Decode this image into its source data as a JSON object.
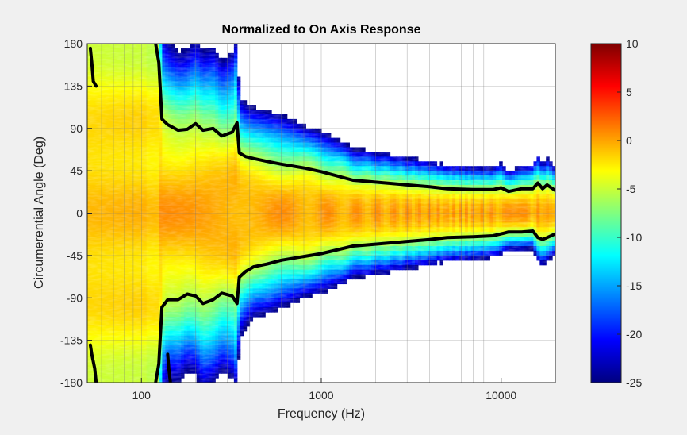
{
  "chart_data": {
    "type": "heatmap",
    "title": "Normalized to On Axis Response",
    "xlabel": "Frequency (Hz)",
    "ylabel": "Circumerential Angle (Deg)",
    "x_scale": "log",
    "xlim": [
      50,
      20000
    ],
    "ylim": [
      -180,
      180
    ],
    "x_ticks": [
      {
        "value": 100,
        "label": "100"
      },
      {
        "value": 1000,
        "label": "1000"
      },
      {
        "value": 10000,
        "label": "10000"
      }
    ],
    "y_ticks": [
      {
        "value": 180,
        "label": "180"
      },
      {
        "value": 135,
        "label": "135"
      },
      {
        "value": 90,
        "label": "90"
      },
      {
        "value": 45,
        "label": "45"
      },
      {
        "value": 0,
        "label": "0"
      },
      {
        "value": -45,
        "label": "-45"
      },
      {
        "value": -90,
        "label": "-90"
      },
      {
        "value": -135,
        "label": "-135"
      },
      {
        "value": -180,
        "label": "-180"
      }
    ],
    "colorbar": {
      "range": [
        -25,
        10
      ],
      "ticks": [
        {
          "value": 10,
          "label": "10"
        },
        {
          "value": 5,
          "label": "5"
        },
        {
          "value": 0,
          "label": "0"
        },
        {
          "value": -5,
          "label": "-5"
        },
        {
          "value": -10,
          "label": "-10"
        },
        {
          "value": -15,
          "label": "-15"
        },
        {
          "value": -20,
          "label": "-20"
        },
        {
          "value": -25,
          "label": "-25"
        }
      ],
      "colormap": "jet",
      "below_range_color": "#ffffff"
    },
    "contour_level_db": -6,
    "contour_upper": {
      "freq": [
        120,
        125,
        130,
        140,
        160,
        180,
        200,
        220,
        250,
        280,
        320,
        340,
        350,
        380,
        420,
        500,
        600,
        800,
        1000,
        1500,
        2000,
        3000,
        4000,
        5000,
        7000,
        9000,
        10000,
        11000,
        13000,
        15000,
        16000,
        17000,
        18000,
        20000
      ],
      "angle": [
        180,
        160,
        100,
        94,
        88,
        89,
        95,
        88,
        90,
        82,
        86,
        96,
        64,
        60,
        58,
        55,
        52,
        48,
        44,
        35,
        33,
        30,
        28,
        26,
        25,
        25,
        27,
        23,
        26,
        26,
        32,
        26,
        30,
        24
      ]
    },
    "contour_lower": {
      "freq": [
        120,
        125,
        130,
        140,
        160,
        180,
        200,
        220,
        250,
        280,
        320,
        340,
        350,
        380,
        420,
        500,
        600,
        800,
        1000,
        1500,
        2000,
        3000,
        4000,
        5000,
        7000,
        9000,
        10000,
        11000,
        13000,
        15000,
        16000,
        17000,
        18000,
        20000
      ],
      "angle": [
        -180,
        -160,
        -100,
        -92,
        -92,
        -86,
        -88,
        -96,
        -92,
        -85,
        -88,
        -96,
        -68,
        -62,
        -57,
        -54,
        -50,
        -46,
        -43,
        -35,
        -33,
        -30,
        -28,
        -26,
        -25,
        -24,
        -22,
        -20,
        -20,
        -19,
        -26,
        -28,
        -26,
        -22
      ]
    },
    "contour_left": [
      {
        "freq": [
          52,
          53,
          54,
          56
        ],
        "angle": [
          175,
          160,
          140,
          135
        ]
      },
      {
        "freq": [
          52,
          53,
          55,
          56
        ],
        "angle": [
          -140,
          -150,
          -165,
          -180
        ]
      },
      {
        "freq": [
          140,
          142,
          145
        ],
        "angle": [
          -150,
          -165,
          -180
        ]
      }
    ]
  }
}
